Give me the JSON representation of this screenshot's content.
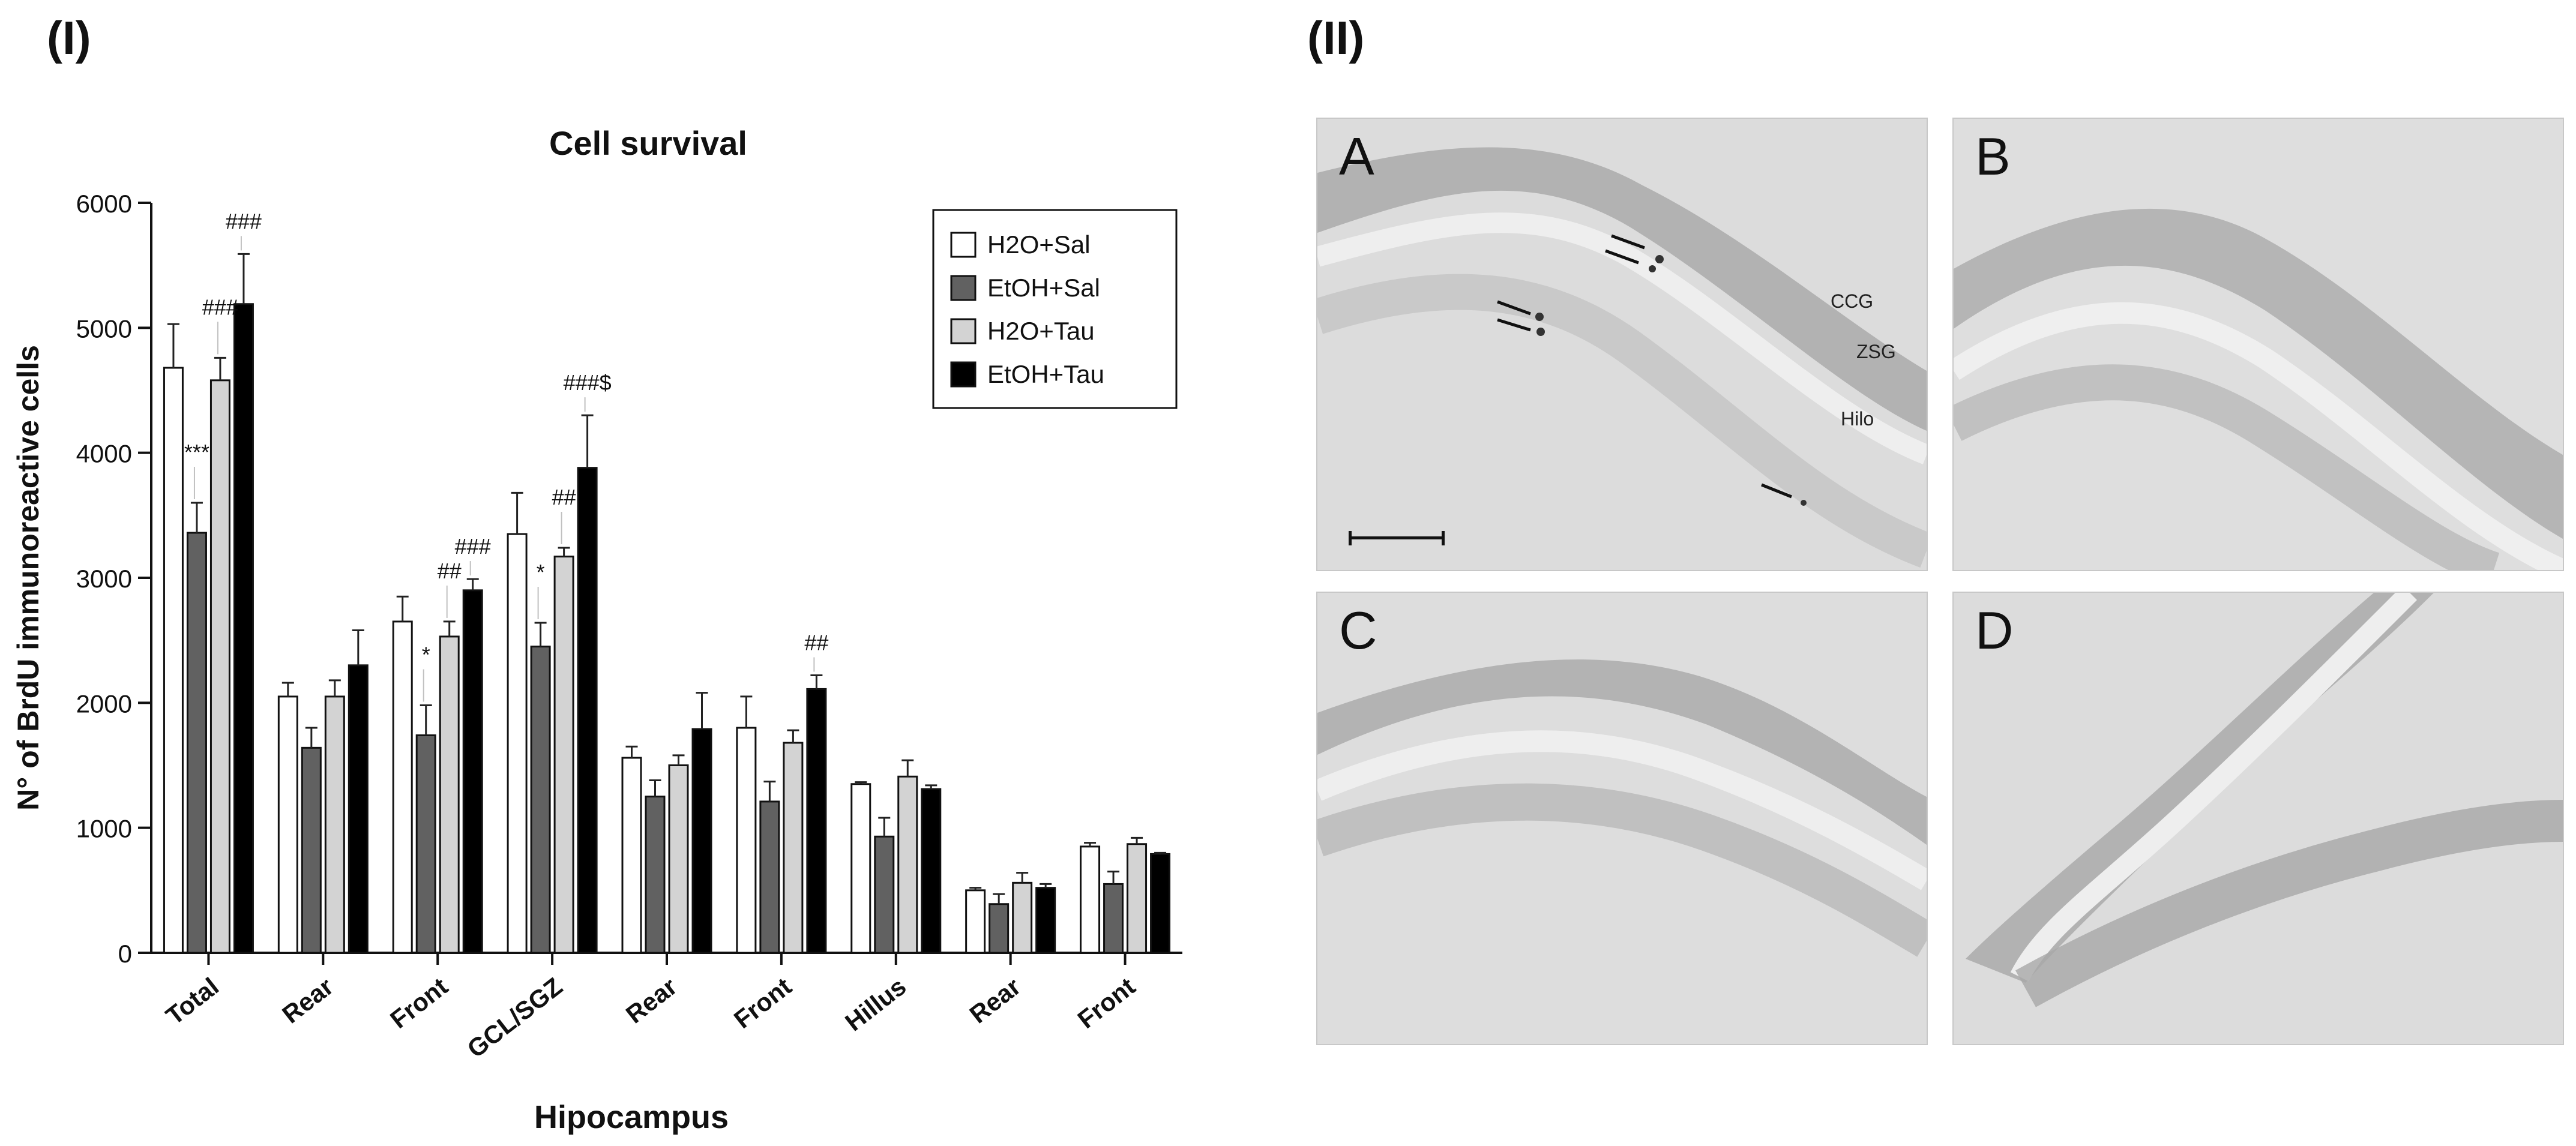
{
  "panel_labels": {
    "left": "(I)",
    "right": "(II)"
  },
  "chart_data": {
    "type": "bar",
    "title": "Cell survival",
    "xlabel": "Hipocampus",
    "ylabel": "N° of BrdU immunoreactive cells",
    "ylim": [
      0,
      6000
    ],
    "yticks": [
      0,
      1000,
      2000,
      3000,
      4000,
      5000,
      6000
    ],
    "legend_position": "top-right",
    "categories": [
      "Total",
      "Rear",
      "Front",
      "GCL/SGZ",
      "Rear",
      "Front",
      "Hillus",
      "Rear",
      "Front"
    ],
    "series": [
      {
        "name": "H2O+Sal",
        "color": "#ffffff",
        "values": [
          4680,
          2050,
          2650,
          3350,
          1560,
          1800,
          1350,
          500,
          850
        ],
        "errors": [
          350,
          110,
          200,
          330,
          90,
          250,
          15,
          20,
          30
        ]
      },
      {
        "name": "EtOH+Sal",
        "color": "#616161",
        "values": [
          3360,
          1640,
          1740,
          2450,
          1250,
          1210,
          930,
          390,
          550
        ],
        "errors": [
          240,
          160,
          240,
          190,
          130,
          160,
          150,
          80,
          100
        ]
      },
      {
        "name": "H2O+Tau",
        "color": "#d3d3d3",
        "values": [
          4580,
          2050,
          2530,
          3170,
          1500,
          1680,
          1410,
          560,
          870
        ],
        "errors": [
          180,
          130,
          120,
          70,
          80,
          100,
          130,
          80,
          50
        ]
      },
      {
        "name": "EtOH+Tau",
        "color": "#000000",
        "values": [
          5190,
          2300,
          2900,
          3880,
          1790,
          2110,
          1310,
          520,
          790
        ],
        "errors": [
          400,
          280,
          90,
          420,
          290,
          110,
          30,
          30,
          10
        ]
      }
    ],
    "annotations": [
      {
        "category": 0,
        "series": 1,
        "text": "***"
      },
      {
        "category": 0,
        "series": 2,
        "text": "###"
      },
      {
        "category": 0,
        "series": 3,
        "text": "###"
      },
      {
        "category": 2,
        "series": 1,
        "text": "*"
      },
      {
        "category": 2,
        "series": 2,
        "text": "##"
      },
      {
        "category": 2,
        "series": 3,
        "text": "###"
      },
      {
        "category": 3,
        "series": 1,
        "text": "*"
      },
      {
        "category": 3,
        "series": 2,
        "text": "##"
      },
      {
        "category": 3,
        "series": 3,
        "text": "###$"
      },
      {
        "category": 5,
        "series": 3,
        "text": "##"
      }
    ]
  },
  "micrographs": [
    {
      "letter": "A",
      "region_labels": [
        "CCG",
        "ZSG",
        "Hilo"
      ]
    },
    {
      "letter": "B"
    },
    {
      "letter": "C"
    },
    {
      "letter": "D"
    }
  ]
}
